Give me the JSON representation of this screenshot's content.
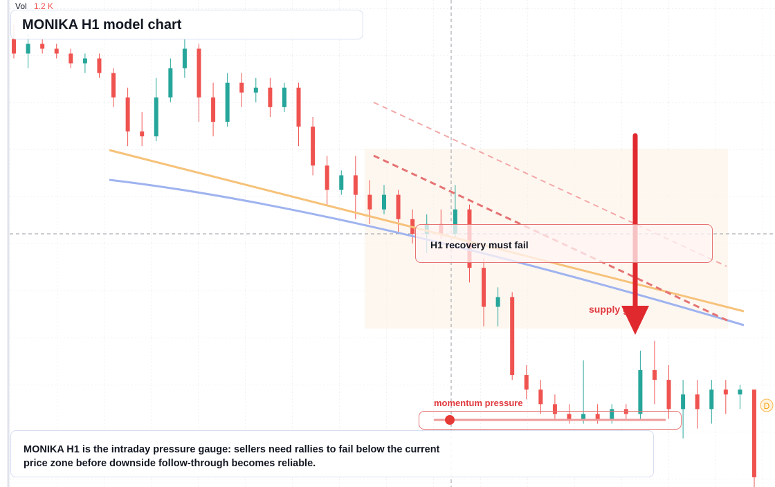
{
  "chart_data": {
    "type": "candlestick",
    "title": "MONIKA H1 model chart",
    "volume_label": "Vol",
    "volume_value": "1.2 K",
    "annotations": [
      "H1 recovery must fail",
      "supply gate",
      "momentum pressure"
    ],
    "caption": "MONIKA H1 is the intraday pressure gauge: sellers need rallies to fail below the current price zone before downside follow-through becomes reliable.",
    "price_marker": "D",
    "up_color": "#26a69a",
    "down_color": "#ef5350",
    "ylim": [
      0,
      100
    ],
    "ohlc": [
      [
        92,
        95,
        88,
        89
      ],
      [
        89,
        93,
        86,
        91
      ],
      [
        91,
        92,
        89,
        90
      ],
      [
        90,
        91,
        88,
        89
      ],
      [
        89,
        90,
        86,
        87
      ],
      [
        87,
        89,
        85,
        88
      ],
      [
        88,
        89,
        84,
        85
      ],
      [
        85,
        86,
        78,
        80
      ],
      [
        80,
        82,
        70,
        73
      ],
      [
        73,
        77,
        70,
        72
      ],
      [
        72,
        84,
        71,
        80
      ],
      [
        80,
        88,
        79,
        86
      ],
      [
        86,
        92,
        84,
        90
      ],
      [
        90,
        91,
        75,
        80
      ],
      [
        80,
        83,
        72,
        75
      ],
      [
        75,
        85,
        74,
        83
      ],
      [
        83,
        85,
        78,
        81
      ],
      [
        81,
        84,
        79,
        82
      ],
      [
        82,
        84,
        76,
        78
      ],
      [
        78,
        83,
        77,
        82
      ],
      [
        82,
        83,
        70,
        74
      ],
      [
        74,
        76,
        64,
        66
      ],
      [
        66,
        68,
        58,
        61
      ],
      [
        61,
        65,
        60,
        64
      ],
      [
        64,
        68,
        55,
        60
      ],
      [
        60,
        63,
        54,
        57
      ],
      [
        57,
        62,
        56,
        60
      ],
      [
        60,
        61,
        52,
        55
      ],
      [
        55,
        57,
        50,
        52
      ],
      [
        52,
        56,
        48,
        54
      ],
      [
        54,
        57,
        51,
        52
      ],
      [
        52,
        62,
        51,
        57
      ],
      [
        57,
        58,
        42,
        45
      ],
      [
        45,
        47,
        33,
        37
      ],
      [
        37,
        41,
        33,
        39
      ],
      [
        39,
        40,
        22,
        23
      ],
      [
        23,
        25,
        18,
        20
      ],
      [
        20,
        22,
        15,
        17
      ],
      [
        17,
        19,
        14,
        15
      ],
      [
        15,
        17,
        13,
        14
      ],
      [
        14,
        26,
        13,
        15
      ],
      [
        15,
        17,
        13,
        14
      ],
      [
        14,
        17,
        13,
        16
      ],
      [
        16,
        17,
        14,
        15
      ],
      [
        15,
        28,
        14,
        24
      ],
      [
        24,
        30,
        17,
        22
      ],
      [
        22,
        25,
        14,
        16
      ],
      [
        16,
        22,
        10,
        19
      ],
      [
        19,
        22,
        12,
        16
      ],
      [
        16,
        22,
        13,
        20
      ],
      [
        20,
        22,
        15,
        19
      ],
      [
        19,
        21,
        16,
        20
      ],
      [
        20,
        20,
        0,
        2
      ]
    ]
  }
}
